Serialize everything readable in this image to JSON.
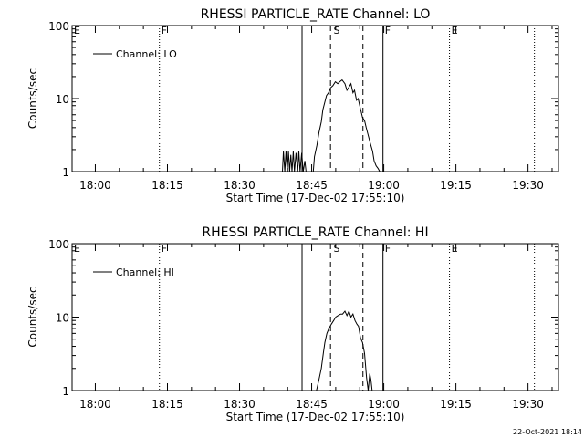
{
  "footer": {
    "timestamp": "22-Oct-2021 18:14"
  },
  "chart_data": [
    {
      "type": "line",
      "title": "RHESSI PARTICLE_RATE Channel: LO",
      "xlabel": "Start Time (17-Dec-02 17:55:10)",
      "ylabel": "Counts/sec",
      "y_scale": "log",
      "ylim": [
        1,
        100
      ],
      "xlim": [
        "17:55:10",
        "19:36:20"
      ],
      "x_ticks": [
        "18:00",
        "18:15",
        "18:30",
        "18:45",
        "19:00",
        "19:15",
        "19:30"
      ],
      "y_ticks": [
        "1",
        "10",
        "100"
      ],
      "grid": false,
      "legend": {
        "position": "top-left",
        "entries": [
          "Channel: LO"
        ]
      },
      "series": [
        {
          "name": "Channel: LO",
          "x": [
            "18:38:55",
            "18:39:07",
            "18:39:25",
            "18:39:40",
            "18:39:55",
            "18:40:10",
            "18:40:25",
            "18:40:40",
            "18:40:55",
            "18:41:10",
            "18:41:25",
            "18:41:45",
            "18:42:05",
            "18:42:20",
            "18:42:35",
            "18:42:55",
            "18:43:15",
            "18:43:35",
            "18:43:50",
            "18:45:20",
            "18:45:35",
            "18:46:05",
            "18:46:30",
            "18:47:00",
            "18:47:20",
            "18:47:45",
            "18:48:05",
            "18:48:30",
            "18:48:55",
            "18:49:25",
            "18:49:55",
            "18:50:25",
            "18:50:50",
            "18:51:20",
            "18:51:55",
            "18:52:20",
            "18:52:40",
            "18:53:10",
            "18:53:35",
            "18:53:55",
            "18:54:20",
            "18:54:40",
            "18:55:00",
            "18:55:35",
            "18:56:00",
            "18:56:20",
            "18:56:50",
            "18:57:10",
            "18:57:40",
            "18:58:00",
            "18:58:25",
            "18:58:50",
            "18:59:10"
          ],
          "values": [
            1,
            1.9,
            1,
            1.9,
            1,
            1.9,
            1,
            1.7,
            1,
            1.9,
            1,
            1.8,
            1,
            1.9,
            1,
            1.8,
            1,
            1.4,
            1,
            1,
            1.6,
            2.3,
            3.4,
            4.8,
            7,
            9,
            11,
            12,
            14,
            15,
            17,
            16,
            17,
            18,
            16,
            13,
            14,
            16,
            12,
            13,
            9.5,
            10,
            8,
            5.5,
            5,
            4,
            3,
            2.5,
            1.9,
            1.4,
            1.2,
            1.1,
            1
          ]
        }
      ],
      "annotations": {
        "labels": [
          {
            "text": "E",
            "x": "17:55:10"
          },
          {
            "text": "F",
            "x": "18:13:20"
          },
          {
            "text": "S",
            "x": "18:49:10"
          },
          {
            "text": "F",
            "x": "18:59:50"
          },
          {
            "text": "E",
            "x": "19:13:40"
          }
        ],
        "solid_lines": [
          "18:43:00",
          "18:59:50"
        ],
        "dashed_lines": [
          "18:48:55",
          "18:55:40"
        ],
        "dotted_lines": [
          "18:13:20",
          "19:13:40",
          "19:31:20"
        ]
      }
    },
    {
      "type": "line",
      "title": "RHESSI PARTICLE_RATE Channel: HI",
      "xlabel": "Start Time (17-Dec-02 17:55:10)",
      "ylabel": "Counts/sec",
      "y_scale": "log",
      "ylim": [
        1,
        100
      ],
      "xlim": [
        "17:55:10",
        "19:36:20"
      ],
      "x_ticks": [
        "18:00",
        "18:15",
        "18:30",
        "18:45",
        "19:00",
        "19:15",
        "19:30"
      ],
      "y_ticks": [
        "1",
        "10",
        "100"
      ],
      "grid": false,
      "legend": {
        "position": "top-left",
        "entries": [
          "Channel: HI"
        ]
      },
      "series": [
        {
          "name": "Channel: HI",
          "x": [
            "18:46:00",
            "18:46:30",
            "18:47:00",
            "18:47:25",
            "18:47:45",
            "18:48:10",
            "18:48:35",
            "18:49:05",
            "18:49:35",
            "18:50:00",
            "18:50:30",
            "18:51:00",
            "18:51:25",
            "18:51:55",
            "18:52:20",
            "18:52:45",
            "18:53:10",
            "18:53:35",
            "18:54:00",
            "18:54:25",
            "18:54:45",
            "18:55:10",
            "18:55:35",
            "18:56:00",
            "18:56:25",
            "18:56:45",
            "18:57:05",
            "18:57:20",
            "18:57:35"
          ],
          "values": [
            1,
            1.4,
            2,
            3.2,
            4.5,
            6,
            7,
            8,
            9,
            10,
            10.5,
            11,
            11,
            12,
            10.5,
            12,
            10,
            11,
            9,
            8,
            7.5,
            5.2,
            4.5,
            3.2,
            1.5,
            1,
            1.7,
            1.4,
            1
          ]
        }
      ],
      "annotations": {
        "labels": [
          {
            "text": "E",
            "x": "17:55:10"
          },
          {
            "text": "F",
            "x": "18:13:20"
          },
          {
            "text": "S",
            "x": "18:49:10"
          },
          {
            "text": "F",
            "x": "18:59:50"
          },
          {
            "text": "E",
            "x": "19:13:40"
          }
        ],
        "solid_lines": [
          "18:43:00",
          "18:59:50"
        ],
        "dashed_lines": [
          "18:48:55",
          "18:55:40"
        ],
        "dotted_lines": [
          "18:13:20",
          "19:13:40",
          "19:31:20"
        ]
      }
    }
  ]
}
